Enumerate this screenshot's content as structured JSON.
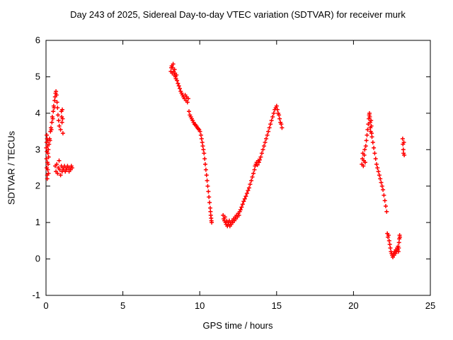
{
  "colors": {
    "background": "#ffffff",
    "axis": "#000000",
    "marker": "#ff0000"
  },
  "chart_data": {
    "type": "scatter",
    "title": "Day 243 of 2025, Sidereal Day-to-day VTEC variation (SDTVAR) for receiver murk",
    "xlabel": "GPS time / hours",
    "ylabel": "SDTVAR / TECUs",
    "xlim": [
      0,
      25
    ],
    "ylim": [
      -1,
      6
    ],
    "xticks": [
      0,
      5,
      10,
      15,
      20,
      25
    ],
    "yticks": [
      -1,
      0,
      1,
      2,
      3,
      4,
      5,
      6
    ],
    "grid": false,
    "legend": "none",
    "marker": "plus",
    "series": [
      {
        "name": "SDTVAR",
        "points": [
          [
            0.02,
            3.05
          ],
          [
            0.03,
            2.75
          ],
          [
            0.04,
            3.2
          ],
          [
            0.05,
            2.5
          ],
          [
            0.06,
            2.95
          ],
          [
            0.07,
            3.3
          ],
          [
            0.08,
            2.3
          ],
          [
            0.09,
            2.65
          ],
          [
            0.1,
            3.1
          ],
          [
            0.11,
            2.45
          ],
          [
            0.12,
            2.9
          ],
          [
            0.13,
            3.25
          ],
          [
            0.14,
            2.6
          ],
          [
            0.15,
            3.0
          ],
          [
            0.16,
            2.35
          ],
          [
            0.17,
            2.8
          ],
          [
            0.05,
            3.4
          ],
          [
            0.08,
            2.2
          ],
          [
            0.2,
            3.15
          ],
          [
            0.23,
            3.3
          ],
          [
            0.26,
            3.25
          ],
          [
            0.29,
            3.5
          ],
          [
            0.32,
            3.6
          ],
          [
            0.35,
            3.55
          ],
          [
            0.38,
            3.75
          ],
          [
            0.41,
            3.9
          ],
          [
            0.44,
            3.85
          ],
          [
            0.47,
            4.05
          ],
          [
            0.5,
            4.2
          ],
          [
            0.53,
            4.15
          ],
          [
            0.56,
            4.35
          ],
          [
            0.59,
            4.45
          ],
          [
            0.62,
            4.55
          ],
          [
            0.65,
            4.6
          ],
          [
            0.68,
            4.5
          ],
          [
            0.72,
            4.3
          ],
          [
            0.75,
            4.15
          ],
          [
            0.78,
            3.95
          ],
          [
            0.82,
            3.8
          ],
          [
            0.86,
            3.65
          ],
          [
            0.95,
            3.55
          ],
          [
            1.0,
            4.05
          ],
          [
            1.02,
            3.9
          ],
          [
            1.04,
            3.75
          ],
          [
            1.06,
            4.1
          ],
          [
            1.08,
            3.85
          ],
          [
            1.1,
            3.45
          ],
          [
            0.6,
            2.55
          ],
          [
            0.65,
            2.4
          ],
          [
            0.7,
            2.6
          ],
          [
            0.75,
            2.35
          ],
          [
            0.8,
            2.5
          ],
          [
            0.85,
            2.7
          ],
          [
            0.9,
            2.45
          ],
          [
            0.95,
            2.3
          ],
          [
            1.0,
            2.55
          ],
          [
            1.05,
            2.4
          ],
          [
            1.1,
            2.5
          ],
          [
            1.15,
            2.45
          ],
          [
            1.2,
            2.55
          ],
          [
            1.25,
            2.4
          ],
          [
            1.3,
            2.5
          ],
          [
            1.35,
            2.45
          ],
          [
            1.4,
            2.55
          ],
          [
            1.45,
            2.5
          ],
          [
            1.5,
            2.4
          ],
          [
            1.55,
            2.5
          ],
          [
            1.6,
            2.45
          ],
          [
            1.65,
            2.55
          ],
          [
            1.7,
            2.5
          ],
          [
            8.12,
            5.15
          ],
          [
            8.15,
            5.25
          ],
          [
            8.18,
            5.3
          ],
          [
            8.21,
            5.1
          ],
          [
            8.24,
            5.25
          ],
          [
            8.27,
            5.35
          ],
          [
            8.3,
            5.15
          ],
          [
            8.33,
            5.05
          ],
          [
            8.36,
            5.2
          ],
          [
            8.39,
            5.1
          ],
          [
            8.42,
            5.0
          ],
          [
            8.45,
            4.95
          ],
          [
            8.48,
            5.05
          ],
          [
            8.52,
            4.9
          ],
          [
            8.58,
            4.82
          ],
          [
            8.64,
            4.75
          ],
          [
            8.7,
            4.68
          ],
          [
            8.76,
            4.6
          ],
          [
            8.82,
            4.55
          ],
          [
            8.88,
            4.5
          ],
          [
            8.94,
            4.45
          ],
          [
            9.0,
            4.4
          ],
          [
            9.05,
            4.5
          ],
          [
            9.1,
            4.35
          ],
          [
            9.15,
            4.45
          ],
          [
            9.2,
            4.3
          ],
          [
            9.25,
            4.4
          ],
          [
            9.3,
            4.05
          ],
          [
            9.36,
            3.95
          ],
          [
            9.42,
            3.9
          ],
          [
            9.48,
            3.85
          ],
          [
            9.54,
            3.8
          ],
          [
            9.6,
            3.75
          ],
          [
            9.66,
            3.7
          ],
          [
            9.72,
            3.68
          ],
          [
            9.78,
            3.65
          ],
          [
            9.84,
            3.6
          ],
          [
            9.9,
            3.58
          ],
          [
            9.96,
            3.55
          ],
          [
            10.02,
            3.5
          ],
          [
            10.08,
            3.4
          ],
          [
            10.12,
            3.3
          ],
          [
            10.16,
            3.2
          ],
          [
            10.2,
            3.1
          ],
          [
            10.24,
            3.0
          ],
          [
            10.28,
            2.9
          ],
          [
            10.32,
            2.75
          ],
          [
            10.36,
            2.6
          ],
          [
            10.4,
            2.45
          ],
          [
            10.44,
            2.3
          ],
          [
            10.48,
            2.15
          ],
          [
            10.52,
            2.0
          ],
          [
            10.56,
            1.85
          ],
          [
            10.6,
            1.7
          ],
          [
            10.64,
            1.55
          ],
          [
            10.68,
            1.4
          ],
          [
            10.7,
            1.3
          ],
          [
            10.72,
            1.2
          ],
          [
            10.74,
            1.12
          ],
          [
            10.76,
            1.05
          ],
          [
            10.78,
            1.0
          ],
          [
            11.52,
            1.2
          ],
          [
            11.56,
            1.1
          ],
          [
            11.6,
            1.05
          ],
          [
            11.64,
            1.15
          ],
          [
            11.68,
            1.0
          ],
          [
            11.72,
            0.95
          ],
          [
            11.76,
            1.05
          ],
          [
            11.8,
            0.9
          ],
          [
            11.84,
            1.0
          ],
          [
            11.88,
            0.95
          ],
          [
            11.92,
            1.05
          ],
          [
            11.96,
            0.9
          ],
          [
            12.0,
            1.0
          ],
          [
            12.05,
            0.95
          ],
          [
            12.1,
            1.05
          ],
          [
            12.15,
            1.0
          ],
          [
            12.2,
            1.1
          ],
          [
            12.25,
            1.05
          ],
          [
            12.3,
            1.15
          ],
          [
            12.35,
            1.1
          ],
          [
            12.4,
            1.2
          ],
          [
            12.45,
            1.15
          ],
          [
            12.5,
            1.25
          ],
          [
            12.55,
            1.2
          ],
          [
            12.6,
            1.3
          ],
          [
            12.65,
            1.35
          ],
          [
            12.72,
            1.42
          ],
          [
            12.79,
            1.5
          ],
          [
            12.86,
            1.58
          ],
          [
            12.93,
            1.65
          ],
          [
            13.0,
            1.72
          ],
          [
            13.07,
            1.8
          ],
          [
            13.14,
            1.88
          ],
          [
            13.21,
            1.95
          ],
          [
            13.28,
            2.05
          ],
          [
            13.35,
            2.15
          ],
          [
            13.42,
            2.25
          ],
          [
            13.49,
            2.35
          ],
          [
            13.56,
            2.45
          ],
          [
            13.6,
            2.55
          ],
          [
            13.65,
            2.6
          ],
          [
            13.7,
            2.65
          ],
          [
            13.75,
            2.58
          ],
          [
            13.8,
            2.7
          ],
          [
            13.85,
            2.65
          ],
          [
            13.9,
            2.72
          ],
          [
            13.97,
            2.8
          ],
          [
            14.04,
            2.9
          ],
          [
            14.11,
            3.0
          ],
          [
            14.18,
            3.1
          ],
          [
            14.25,
            3.2
          ],
          [
            14.32,
            3.3
          ],
          [
            14.39,
            3.4
          ],
          [
            14.46,
            3.5
          ],
          [
            14.53,
            3.6
          ],
          [
            14.6,
            3.7
          ],
          [
            14.67,
            3.8
          ],
          [
            14.74,
            3.9
          ],
          [
            14.81,
            4.0
          ],
          [
            14.88,
            4.1
          ],
          [
            14.95,
            4.15
          ],
          [
            15.0,
            4.2
          ],
          [
            15.05,
            4.1
          ],
          [
            15.1,
            4.0
          ],
          [
            15.15,
            3.95
          ],
          [
            15.2,
            3.85
          ],
          [
            15.25,
            3.75
          ],
          [
            15.3,
            3.7
          ],
          [
            15.35,
            3.6
          ],
          [
            20.55,
            2.6
          ],
          [
            20.58,
            2.75
          ],
          [
            20.61,
            2.9
          ],
          [
            20.64,
            2.55
          ],
          [
            20.67,
            2.7
          ],
          [
            20.7,
            2.85
          ],
          [
            20.73,
            3.0
          ],
          [
            20.76,
            2.65
          ],
          [
            20.8,
            3.1
          ],
          [
            20.84,
            3.25
          ],
          [
            20.88,
            3.4
          ],
          [
            20.92,
            3.55
          ],
          [
            20.96,
            3.7
          ],
          [
            21.0,
            3.85
          ],
          [
            21.02,
            3.95
          ],
          [
            21.04,
            4.0
          ],
          [
            21.06,
            3.9
          ],
          [
            21.08,
            3.75
          ],
          [
            21.1,
            3.6
          ],
          [
            21.12,
            3.5
          ],
          [
            21.14,
            3.8
          ],
          [
            21.16,
            3.65
          ],
          [
            21.18,
            3.45
          ],
          [
            21.2,
            3.35
          ],
          [
            21.26,
            3.2
          ],
          [
            21.32,
            3.05
          ],
          [
            21.38,
            2.9
          ],
          [
            21.44,
            2.75
          ],
          [
            21.5,
            2.6
          ],
          [
            21.56,
            2.5
          ],
          [
            21.62,
            2.4
          ],
          [
            21.68,
            2.3
          ],
          [
            21.74,
            2.2
          ],
          [
            21.8,
            2.1
          ],
          [
            21.86,
            2.0
          ],
          [
            21.92,
            1.9
          ],
          [
            21.98,
            1.75
          ],
          [
            22.04,
            1.6
          ],
          [
            22.1,
            1.45
          ],
          [
            22.16,
            1.3
          ],
          [
            22.2,
            0.7
          ],
          [
            22.24,
            0.6
          ],
          [
            22.28,
            0.65
          ],
          [
            22.32,
            0.5
          ],
          [
            22.36,
            0.4
          ],
          [
            22.4,
            0.3
          ],
          [
            22.44,
            0.2
          ],
          [
            22.48,
            0.15
          ],
          [
            22.52,
            0.1
          ],
          [
            22.56,
            0.05
          ],
          [
            22.6,
            0.15
          ],
          [
            22.64,
            0.1
          ],
          [
            22.68,
            0.2
          ],
          [
            22.72,
            0.15
          ],
          [
            22.76,
            0.25
          ],
          [
            22.8,
            0.2
          ],
          [
            22.84,
            0.3
          ],
          [
            22.88,
            0.25
          ],
          [
            22.9,
            0.35
          ],
          [
            22.92,
            0.2
          ],
          [
            22.94,
            0.3
          ],
          [
            22.96,
            0.45
          ],
          [
            22.98,
            0.55
          ],
          [
            23.0,
            0.65
          ],
          [
            23.02,
            0.6
          ],
          [
            23.2,
            3.3
          ],
          [
            23.22,
            3.15
          ],
          [
            23.24,
            3.0
          ],
          [
            23.26,
            2.9
          ],
          [
            23.28,
            3.2
          ],
          [
            23.3,
            2.85
          ]
        ]
      }
    ]
  }
}
